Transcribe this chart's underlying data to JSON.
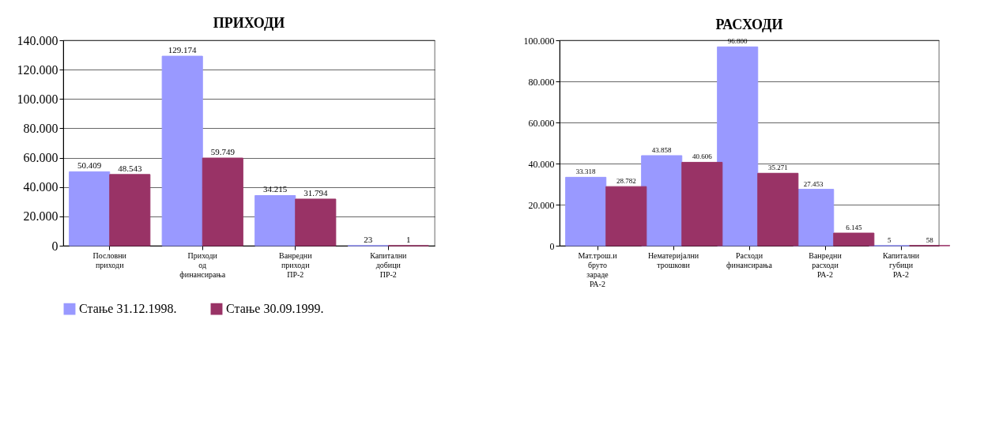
{
  "chart_data": [
    {
      "type": "bar",
      "title": "ПРИХОДИ",
      "categories": [
        "Пословни приходи",
        "Приходи од финансирања",
        "Ванредни приходи ПР-2",
        "Капитални добици ПР-2"
      ],
      "series": [
        {
          "name": "Стање 31.12.1998.",
          "color": "#9999ff",
          "values": [
            50409,
            129174,
            34215,
            23
          ],
          "value_labels": [
            "50.409",
            "129.174",
            "34.215",
            "23"
          ]
        },
        {
          "name": "Стање 30.09.1999.",
          "color": "#993366",
          "values": [
            48543,
            59749,
            31794,
            1
          ],
          "value_labels": [
            "48.543",
            "59.749",
            "31.794",
            "1"
          ]
        }
      ],
      "ylim": [
        0,
        140000
      ],
      "yticks": [
        {
          "value": 0,
          "label": "0"
        },
        {
          "value": 20000,
          "label": "20.000"
        },
        {
          "value": 40000,
          "label": "40.000"
        },
        {
          "value": 60000,
          "label": "60.000"
        },
        {
          "value": 80000,
          "label": "80.000"
        },
        {
          "value": 100000,
          "label": "100.000"
        },
        {
          "value": 120000,
          "label": "120.000"
        },
        {
          "value": 140000,
          "label": "140.000"
        }
      ],
      "grid": "y",
      "legend": "bottom"
    },
    {
      "type": "bar",
      "title": "РАСХОДИ",
      "categories": [
        "Мат.трош.и бруто зараде РА-2",
        "Нематеријални трошкови",
        "Расходи финансирања",
        "Ванредни расходи РА-2",
        "Капитални губици РА-2"
      ],
      "series": [
        {
          "name": "Стање 31.12.1998.",
          "color": "#9999ff",
          "values": [
            33318,
            43858,
            96800,
            27453,
            5
          ],
          "value_labels": [
            "33.318",
            "43.858",
            "96.800",
            "27.453",
            "5"
          ]
        },
        {
          "name": "Стање 30.09.1999.",
          "color": "#993366",
          "values": [
            28782,
            40606,
            35271,
            6145,
            58
          ],
          "value_labels": [
            "28.782",
            "40.606",
            "35.271",
            "6.145",
            "58"
          ]
        }
      ],
      "ylim": [
        0,
        100000
      ],
      "yticks": [
        {
          "value": 0,
          "label": "0"
        },
        {
          "value": 20000,
          "label": "20.000"
        },
        {
          "value": 40000,
          "label": "40.000"
        },
        {
          "value": 60000,
          "label": "60.000"
        },
        {
          "value": 80000,
          "label": "80.000"
        },
        {
          "value": 100000,
          "label": "100.000"
        }
      ],
      "grid": "y",
      "legend": "bottom"
    }
  ]
}
